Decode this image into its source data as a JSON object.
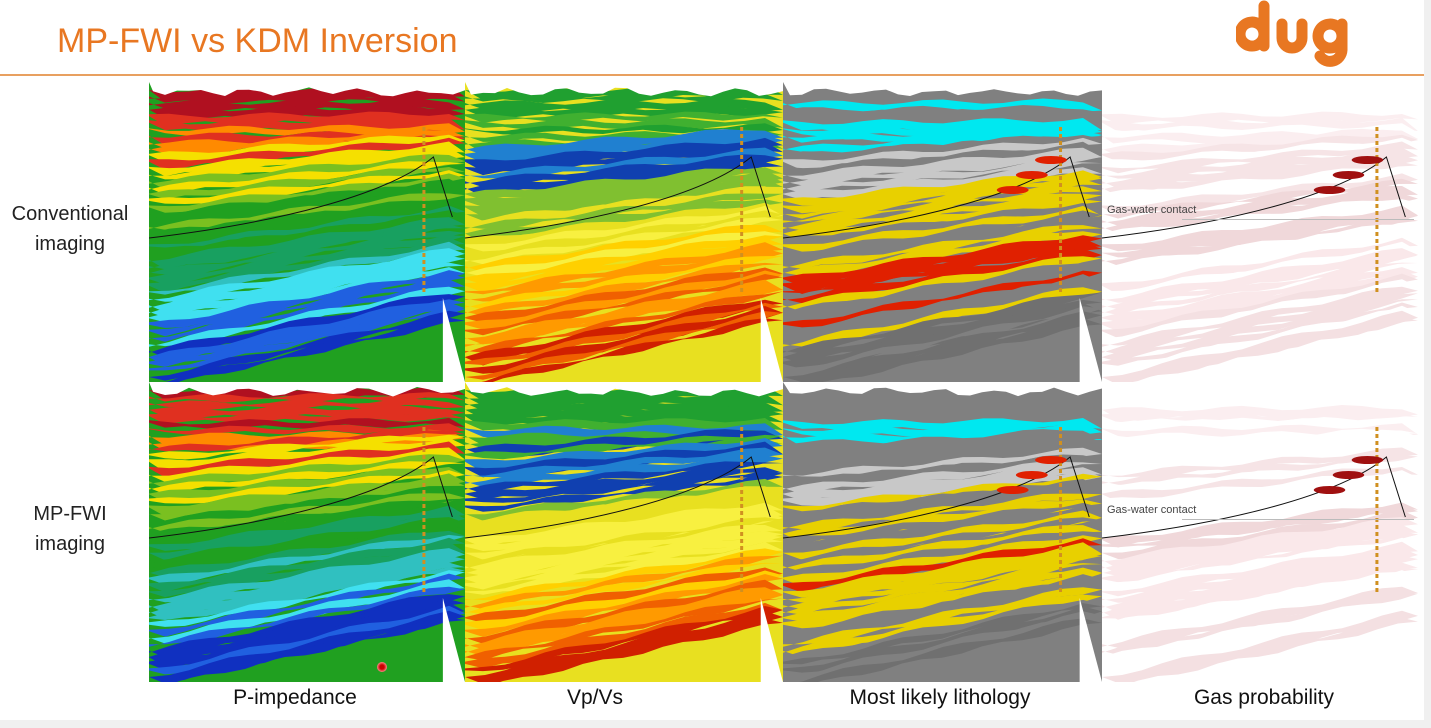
{
  "slide": {
    "title": "MP-FWI vs KDM Inversion",
    "logo_text": "dug",
    "accent_color": "#e87722"
  },
  "rows": [
    {
      "label_line1": "Conventional",
      "label_line2": "imaging"
    },
    {
      "label_line1": "MP-FWI",
      "label_line2": "imaging"
    }
  ],
  "columns": [
    {
      "label": "P-impedance",
      "palette": "rainbow-impedance"
    },
    {
      "label": "Vp/Vs",
      "palette": "rainbow-vpvs"
    },
    {
      "label": "Most likely lithology",
      "palette": "lithology"
    },
    {
      "label": "Gas probability",
      "palette": "gas"
    }
  ],
  "annotations": {
    "gas_water_contact": "Gas-water contact"
  }
}
